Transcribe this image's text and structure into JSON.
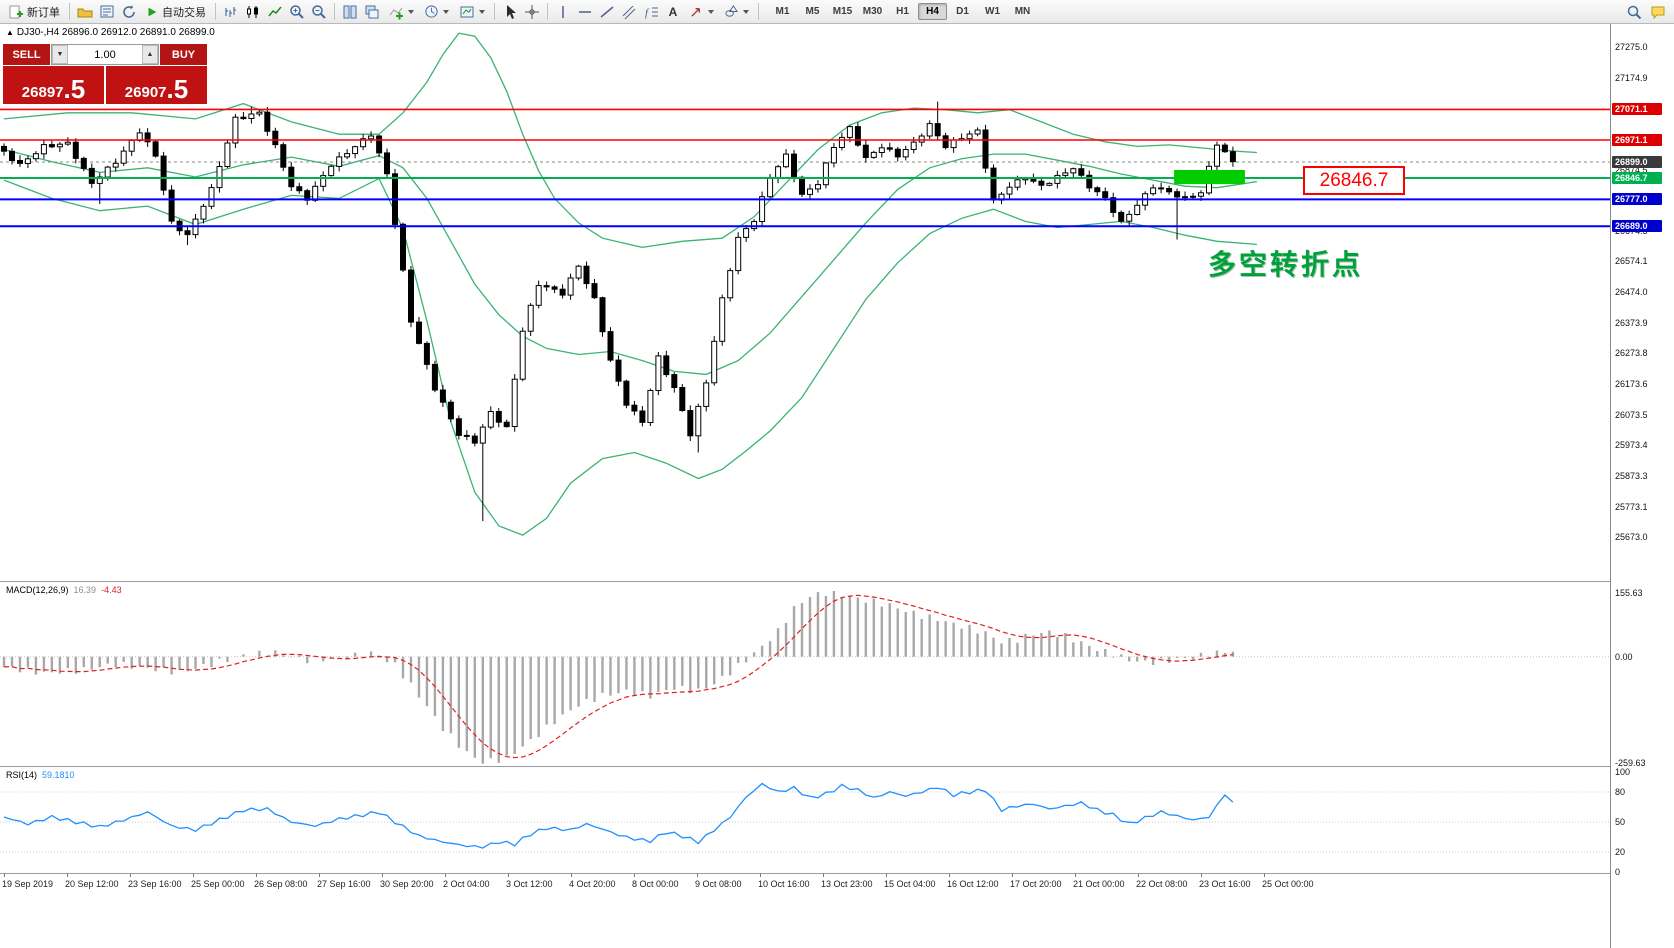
{
  "toolbar": {
    "new_order_label": "新订单",
    "autotrade_label": "自动交易",
    "text_tool_label": "A",
    "timeframes": [
      "M1",
      "M5",
      "M15",
      "M30",
      "H1",
      "H4",
      "D1",
      "W1",
      "MN"
    ],
    "active_timeframe": "H4"
  },
  "symbol_header": {
    "marker": "▲",
    "text": "DJ30-,H4 26896.0 26912.0 26891.0 26899.0"
  },
  "trade_panel": {
    "sell_label": "SELL",
    "buy_label": "BUY",
    "volume": "1.00",
    "sell_price_int": "26897",
    "sell_price_frac": ".5",
    "buy_price_int": "26907",
    "buy_price_frac": ".5"
  },
  "annotations": {
    "price_callout": "26846.7",
    "note": "多空转折点",
    "highlight_color": "#00cc00"
  },
  "macd_header": {
    "name": "MACD(12,26,9)",
    "value_main": "16.39",
    "value_signal": "-4.43"
  },
  "rsi_header": {
    "name": "RSI(14)",
    "value": "59.1810"
  },
  "price_axis": {
    "ticks": [
      27275.0,
      27174.9,
      27074.8,
      26974.6,
      26874.5,
      26774.4,
      26674.3,
      26574.1,
      26474.0,
      26373.9,
      26273.8,
      26173.6,
      26073.5,
      25973.4,
      25873.3,
      25773.1,
      25673.0
    ],
    "badges": [
      {
        "label": "27071.1",
        "price": 27071.1,
        "bg": "#dd0000"
      },
      {
        "label": "26971.1",
        "price": 26971.1,
        "bg": "#dd0000"
      },
      {
        "label": "26899.0",
        "price": 26899.0,
        "bg": "#3a3a3a"
      },
      {
        "label": "26846.7",
        "price": 26846.7,
        "bg": "#00b050"
      },
      {
        "label": "26777.0",
        "price": 26777.0,
        "bg": "#0000cc"
      },
      {
        "label": "26689.0",
        "price": 26689.0,
        "bg": "#0000cc"
      }
    ]
  },
  "macd_axis": [
    {
      "label": "155.63",
      "value": 155.63
    },
    {
      "label": "0.00",
      "value": 0
    },
    {
      "label": "-259.63",
      "value": -259.63
    }
  ],
  "rsi_axis": [
    {
      "label": "100",
      "value": 100
    },
    {
      "label": "80",
      "value": 80
    },
    {
      "label": "50",
      "value": 50
    },
    {
      "label": "20",
      "value": 20
    },
    {
      "label": "0",
      "value": 0
    }
  ],
  "time_axis": [
    "19 Sep 2019",
    "20 Sep 12:00",
    "23 Sep 16:00",
    "25 Sep 00:00",
    "26 Sep 08:00",
    "27 Sep 16:00",
    "30 Sep 20:00",
    "2 Oct 04:00",
    "3 Oct 12:00",
    "4 Oct 20:00",
    "8 Oct 00:00",
    "9 Oct 08:00",
    "10 Oct 16:00",
    "13 Oct 23:00",
    "15 Oct 04:00",
    "16 Oct 12:00",
    "17 Oct 20:00",
    "21 Oct 00:00",
    "22 Oct 08:00",
    "23 Oct 16:00",
    "25 Oct 00:00"
  ],
  "chart_data": {
    "type": "candlestick",
    "symbol": "DJ30-",
    "timeframe": "H4",
    "ohlc_current": {
      "open": 26896.0,
      "high": 26912.0,
      "low": 26891.0,
      "close": 26899.0
    },
    "price_range_visible": [
      25530,
      27350
    ],
    "candle_count": 155,
    "price_path": [
      [
        0,
        26950
      ],
      [
        3,
        26890
      ],
      [
        6,
        26950
      ],
      [
        9,
        26960
      ],
      [
        12,
        26830
      ],
      [
        15,
        26900
      ],
      [
        18,
        27000
      ],
      [
        20,
        26920
      ],
      [
        22,
        26700
      ],
      [
        24,
        26660
      ],
      [
        27,
        26810
      ],
      [
        30,
        27040
      ],
      [
        33,
        27060
      ],
      [
        35,
        26950
      ],
      [
        37,
        26820
      ],
      [
        39,
        26780
      ],
      [
        42,
        26890
      ],
      [
        45,
        26950
      ],
      [
        47,
        26990
      ],
      [
        49,
        26860
      ],
      [
        52,
        26380
      ],
      [
        55,
        26160
      ],
      [
        58,
        26010
      ],
      [
        60,
        25985
      ],
      [
        62,
        26080
      ],
      [
        64,
        26030
      ],
      [
        66,
        26350
      ],
      [
        68,
        26500
      ],
      [
        71,
        26470
      ],
      [
        73,
        26560
      ],
      [
        75,
        26450
      ],
      [
        77,
        26250
      ],
      [
        79,
        26110
      ],
      [
        81,
        26050
      ],
      [
        83,
        26260
      ],
      [
        85,
        26160
      ],
      [
        87,
        26010
      ],
      [
        89,
        26180
      ],
      [
        91,
        26450
      ],
      [
        93,
        26650
      ],
      [
        95,
        26710
      ],
      [
        97,
        26850
      ],
      [
        99,
        26920
      ],
      [
        101,
        26790
      ],
      [
        103,
        26830
      ],
      [
        105,
        26950
      ],
      [
        107,
        27010
      ],
      [
        109,
        26910
      ],
      [
        111,
        26950
      ],
      [
        113,
        26920
      ],
      [
        115,
        26960
      ],
      [
        117,
        27020
      ],
      [
        119,
        26950
      ],
      [
        121,
        26980
      ],
      [
        123,
        27000
      ],
      [
        125,
        26770
      ],
      [
        127,
        26820
      ],
      [
        129,
        26850
      ],
      [
        131,
        26820
      ],
      [
        133,
        26850
      ],
      [
        135,
        26880
      ],
      [
        137,
        26820
      ],
      [
        139,
        26780
      ],
      [
        141,
        26700
      ],
      [
        143,
        26760
      ],
      [
        145,
        26820
      ],
      [
        147,
        26800
      ],
      [
        149,
        26780
      ],
      [
        151,
        26800
      ],
      [
        153,
        26960
      ],
      [
        155,
        26899
      ]
    ],
    "wick_overrides": [
      {
        "i": 12,
        "low": 26762
      },
      {
        "i": 23,
        "low": 26628
      },
      {
        "i": 31,
        "high": 27080
      },
      {
        "i": 60,
        "low": 25726
      },
      {
        "i": 87,
        "low": 25950
      },
      {
        "i": 117,
        "high": 27096
      },
      {
        "i": 147,
        "low": 26646
      }
    ],
    "levels": [
      {
        "price": 27071.1,
        "color": "#ff0000",
        "width": 1.6
      },
      {
        "price": 26971.1,
        "color": "#ff0000",
        "width": 1.6
      },
      {
        "price": 26846.7,
        "color": "#00b050",
        "width": 2
      },
      {
        "price": 26777.0,
        "color": "#0000ff",
        "width": 2
      },
      {
        "price": 26689.0,
        "color": "#0000ff",
        "width": 2
      }
    ],
    "current_price": 26899.0,
    "bollinger": {
      "color": "#3cb371",
      "upper": [
        [
          0,
          27040
        ],
        [
          8,
          27060
        ],
        [
          16,
          27060
        ],
        [
          24,
          27040
        ],
        [
          30,
          27090
        ],
        [
          36,
          27030
        ],
        [
          42,
          26990
        ],
        [
          47,
          26990
        ],
        [
          50,
          27060
        ],
        [
          53,
          27160
        ],
        [
          55,
          27250
        ],
        [
          57,
          27320
        ],
        [
          59,
          27310
        ],
        [
          61,
          27240
        ],
        [
          63,
          27130
        ],
        [
          65,
          26990
        ],
        [
          67,
          26870
        ],
        [
          69,
          26780
        ],
        [
          72,
          26700
        ],
        [
          75,
          26650
        ],
        [
          80,
          26620
        ],
        [
          85,
          26640
        ],
        [
          90,
          26650
        ],
        [
          94,
          26720
        ],
        [
          98,
          26830
        ],
        [
          102,
          26940
        ],
        [
          106,
          27020
        ],
        [
          110,
          27060
        ],
        [
          114,
          27075
        ],
        [
          118,
          27070
        ],
        [
          122,
          27060
        ],
        [
          126,
          27070
        ],
        [
          130,
          27030
        ],
        [
          134,
          26990
        ],
        [
          138,
          26965
        ],
        [
          142,
          26950
        ],
        [
          146,
          26955
        ],
        [
          150,
          26945
        ],
        [
          154,
          26935
        ],
        [
          157,
          26930
        ]
      ],
      "middle": [
        [
          0,
          26940
        ],
        [
          6,
          26900
        ],
        [
          12,
          26865
        ],
        [
          18,
          26880
        ],
        [
          24,
          26850
        ],
        [
          30,
          26890
        ],
        [
          36,
          26915
        ],
        [
          42,
          26885
        ],
        [
          47,
          26920
        ],
        [
          50,
          26880
        ],
        [
          53,
          26780
        ],
        [
          56,
          26640
        ],
        [
          59,
          26500
        ],
        [
          62,
          26400
        ],
        [
          65,
          26330
        ],
        [
          68,
          26290
        ],
        [
          72,
          26270
        ],
        [
          76,
          26280
        ],
        [
          80,
          26250
        ],
        [
          84,
          26215
        ],
        [
          88,
          26205
        ],
        [
          92,
          26250
        ],
        [
          96,
          26340
        ],
        [
          100,
          26460
        ],
        [
          104,
          26580
        ],
        [
          108,
          26700
        ],
        [
          112,
          26810
        ],
        [
          116,
          26880
        ],
        [
          120,
          26910
        ],
        [
          124,
          26925
        ],
        [
          128,
          26925
        ],
        [
          132,
          26905
        ],
        [
          136,
          26885
        ],
        [
          140,
          26860
        ],
        [
          144,
          26840
        ],
        [
          148,
          26820
        ],
        [
          152,
          26815
        ],
        [
          157,
          26835
        ]
      ],
      "lower": [
        [
          0,
          26840
        ],
        [
          6,
          26780
        ],
        [
          12,
          26740
        ],
        [
          18,
          26755
        ],
        [
          24,
          26695
        ],
        [
          30,
          26745
        ],
        [
          36,
          26790
        ],
        [
          42,
          26780
        ],
        [
          47,
          26845
        ],
        [
          50,
          26680
        ],
        [
          53,
          26380
        ],
        [
          56,
          26050
        ],
        [
          59,
          25820
        ],
        [
          62,
          25710
        ],
        [
          65,
          25680
        ],
        [
          68,
          25735
        ],
        [
          71,
          25850
        ],
        [
          75,
          25930
        ],
        [
          79,
          25950
        ],
        [
          83,
          25915
        ],
        [
          87,
          25865
        ],
        [
          90,
          25895
        ],
        [
          93,
          25955
        ],
        [
          96,
          26020
        ],
        [
          100,
          26130
        ],
        [
          104,
          26290
        ],
        [
          108,
          26450
        ],
        [
          112,
          26570
        ],
        [
          116,
          26665
        ],
        [
          120,
          26715
        ],
        [
          124,
          26745
        ],
        [
          128,
          26705
        ],
        [
          132,
          26685
        ],
        [
          136,
          26695
        ],
        [
          140,
          26705
        ],
        [
          144,
          26685
        ],
        [
          148,
          26660
        ],
        [
          152,
          26640
        ],
        [
          157,
          26630
        ]
      ]
    },
    "macd": {
      "hist_color": "#a8a8a8",
      "signal_color": "#e02020",
      "range": [
        -259.63,
        155.63
      ],
      "histogram_anchors": [
        [
          0,
          -25
        ],
        [
          5,
          -40
        ],
        [
          10,
          -32
        ],
        [
          14,
          -18
        ],
        [
          18,
          -28
        ],
        [
          22,
          -38
        ],
        [
          26,
          -18
        ],
        [
          30,
          4
        ],
        [
          34,
          10
        ],
        [
          38,
          -8
        ],
        [
          42,
          -4
        ],
        [
          46,
          8
        ],
        [
          49,
          -20
        ],
        [
          52,
          -95
        ],
        [
          55,
          -175
        ],
        [
          58,
          -235
        ],
        [
          60,
          -258
        ],
        [
          63,
          -248
        ],
        [
          66,
          -205
        ],
        [
          69,
          -158
        ],
        [
          72,
          -118
        ],
        [
          75,
          -95
        ],
        [
          78,
          -85
        ],
        [
          81,
          -96
        ],
        [
          84,
          -76
        ],
        [
          87,
          -84
        ],
        [
          89,
          -66
        ],
        [
          91,
          -38
        ],
        [
          93,
          -8
        ],
        [
          95,
          25
        ],
        [
          97,
          62
        ],
        [
          99,
          118
        ],
        [
          101,
          148
        ],
        [
          103,
          156
        ],
        [
          105,
          150
        ],
        [
          107,
          142
        ],
        [
          109,
          134
        ],
        [
          111,
          126
        ],
        [
          113,
          112
        ],
        [
          115,
          100
        ],
        [
          117,
          92
        ],
        [
          119,
          80
        ],
        [
          121,
          70
        ],
        [
          123,
          58
        ],
        [
          125,
          36
        ],
        [
          127,
          42
        ],
        [
          129,
          56
        ],
        [
          131,
          60
        ],
        [
          133,
          50
        ],
        [
          135,
          34
        ],
        [
          137,
          18
        ],
        [
          139,
          6
        ],
        [
          141,
          -8
        ],
        [
          143,
          -14
        ],
        [
          145,
          -12
        ],
        [
          147,
          -6
        ],
        [
          149,
          -2
        ],
        [
          151,
          6
        ],
        [
          153,
          12
        ],
        [
          155,
          16
        ]
      ]
    },
    "rsi": {
      "color": "#1e90ff",
      "levels": [
        80,
        50,
        20
      ],
      "range": [
        0,
        100
      ],
      "anchors": [
        [
          0,
          55
        ],
        [
          3,
          48
        ],
        [
          6,
          55
        ],
        [
          9,
          50
        ],
        [
          12,
          45
        ],
        [
          15,
          52
        ],
        [
          18,
          60
        ],
        [
          21,
          46
        ],
        [
          24,
          42
        ],
        [
          27,
          52
        ],
        [
          30,
          62
        ],
        [
          33,
          63
        ],
        [
          36,
          50
        ],
        [
          39,
          46
        ],
        [
          42,
          53
        ],
        [
          45,
          57
        ],
        [
          47,
          60
        ],
        [
          49,
          50
        ],
        [
          52,
          36
        ],
        [
          55,
          30
        ],
        [
          58,
          26
        ],
        [
          60,
          25
        ],
        [
          62,
          30
        ],
        [
          64,
          28
        ],
        [
          66,
          38
        ],
        [
          68,
          44
        ],
        [
          71,
          42
        ],
        [
          73,
          48
        ],
        [
          75,
          43
        ],
        [
          77,
          37
        ],
        [
          79,
          33
        ],
        [
          81,
          31
        ],
        [
          83,
          40
        ],
        [
          85,
          36
        ],
        [
          87,
          30
        ],
        [
          89,
          42
        ],
        [
          91,
          55
        ],
        [
          93,
          75
        ],
        [
          95,
          88
        ],
        [
          97,
          80
        ],
        [
          99,
          84
        ],
        [
          101,
          74
        ],
        [
          103,
          78
        ],
        [
          105,
          86
        ],
        [
          107,
          82
        ],
        [
          109,
          74
        ],
        [
          111,
          80
        ],
        [
          113,
          76
        ],
        [
          115,
          80
        ],
        [
          117,
          85
        ],
        [
          119,
          77
        ],
        [
          121,
          80
        ],
        [
          123,
          82
        ],
        [
          125,
          62
        ],
        [
          127,
          66
        ],
        [
          129,
          68
        ],
        [
          131,
          63
        ],
        [
          133,
          66
        ],
        [
          135,
          69
        ],
        [
          137,
          62
        ],
        [
          139,
          57
        ],
        [
          141,
          48
        ],
        [
          143,
          54
        ],
        [
          145,
          60
        ],
        [
          147,
          56
        ],
        [
          149,
          52
        ],
        [
          151,
          55
        ],
        [
          153,
          78
        ],
        [
          155,
          59.2
        ]
      ]
    },
    "highlight_rect": {
      "x1_candle": 147,
      "x2_candle": 155.5,
      "price_top": 26873,
      "price_bottom": 26827
    }
  }
}
